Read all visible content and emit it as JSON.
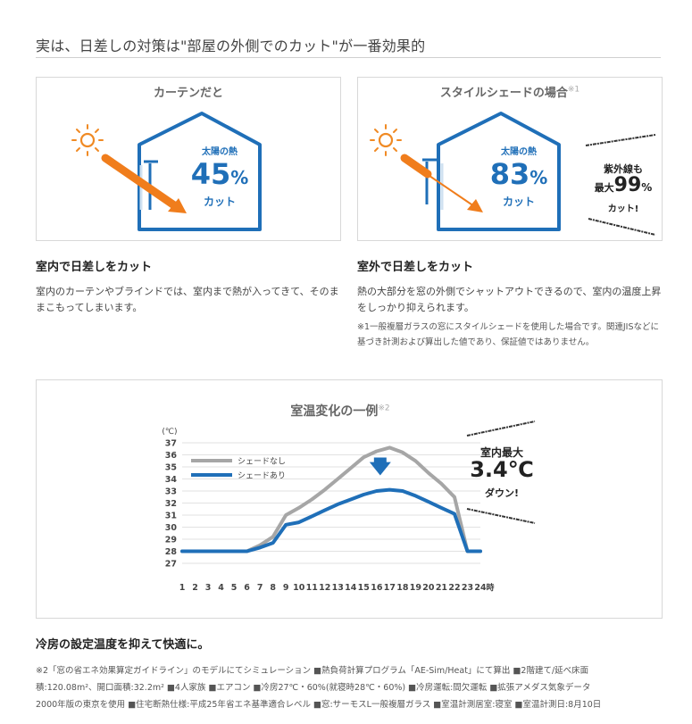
{
  "page": {
    "title": "実は、日差しの対策は\"部屋の外側でのカット\"が一番効果的"
  },
  "curtain": {
    "panel_title": "カーテンだと",
    "heat_label": "太陽の熱",
    "percent": "45",
    "percent_sign": "%",
    "cut_label": "カット",
    "heading": "室内で日差しをカット",
    "body": "室内のカーテンやブラインドでは、室内まで熱が入ってきて、そのままこもってしまいます。"
  },
  "shade": {
    "panel_title": "スタイルシェードの場合",
    "panel_note_mark": "※1",
    "heat_label": "太陽の熱",
    "percent": "83",
    "percent_sign": "%",
    "cut_label": "カット",
    "uv_line1": "紫外線も",
    "uv_prefix": "最大",
    "uv_value": "99",
    "uv_sign": "%",
    "uv_cut": "カット!",
    "heading": "室外で日差しをカット",
    "body": "熱の大部分を窓の外側でシャットアウトできるので、室内の温度上昇をしっかり抑えられます。",
    "note": "※1一般複層ガラスの窓にスタイルシェードを使用した場合です。関連JISなどに基づき計測および算出した値であり、保証値ではありません。"
  },
  "chart_box": {
    "callout_line1": "室内最大",
    "callout_value": "3.4℃",
    "callout_line3": "ダウン!"
  },
  "chart_data": {
    "type": "line",
    "title": "室温変化の一例",
    "title_note": "※2",
    "ylabel": "(℃)",
    "x_suffix": "時",
    "x": [
      1,
      2,
      3,
      4,
      5,
      6,
      7,
      8,
      9,
      10,
      11,
      12,
      13,
      14,
      15,
      16,
      17,
      18,
      19,
      20,
      21,
      22,
      23,
      24
    ],
    "ylim": [
      27,
      37
    ],
    "yticks": [
      37,
      36,
      35,
      34,
      33,
      32,
      31,
      30,
      29,
      28,
      27
    ],
    "legend_position": "top-left",
    "grid": true,
    "series": [
      {
        "name": "シェードなし",
        "color": "#a6a6a6",
        "values": [
          28,
          28,
          28,
          28,
          28,
          28,
          28.5,
          29.2,
          31,
          31.6,
          32.3,
          33.1,
          34,
          34.9,
          35.8,
          36.3,
          36.6,
          36.2,
          35.5,
          34.5,
          33.6,
          32.5,
          28,
          28
        ]
      },
      {
        "name": "シェードあり",
        "color": "#1f6fb8",
        "values": [
          28,
          28,
          28,
          28,
          28,
          28,
          28.3,
          28.7,
          30.2,
          30.4,
          30.9,
          31.4,
          31.9,
          32.3,
          32.7,
          33,
          33.1,
          33,
          32.6,
          32.1,
          31.6,
          31.1,
          28,
          28
        ]
      }
    ]
  },
  "footer": {
    "heading": "冷房の設定温度を抑えて快適に。",
    "line1": "※2「窓の省エネ効果算定ガイドライン」のモデルにてシミュレーション ■熱負荷計算プログラム「AE-Sim/Heat」にて算出 ■2階建て/延べ床面",
    "line2": "積:120.08m²、開口面積:32.2m² ■4人家族 ■エアコン ■冷房27℃・60%(就寝時28℃・60%) ■冷房運転:間欠運転 ■拡張アメダス気象データ",
    "line3": "2000年版の東京を使用 ■住宅断熱仕様:平成25年省エネ基準適合レベル ■窓:サーモスL一般複層ガラス ■室温計測居室:寝室 ■室温計測日:8月10日"
  }
}
